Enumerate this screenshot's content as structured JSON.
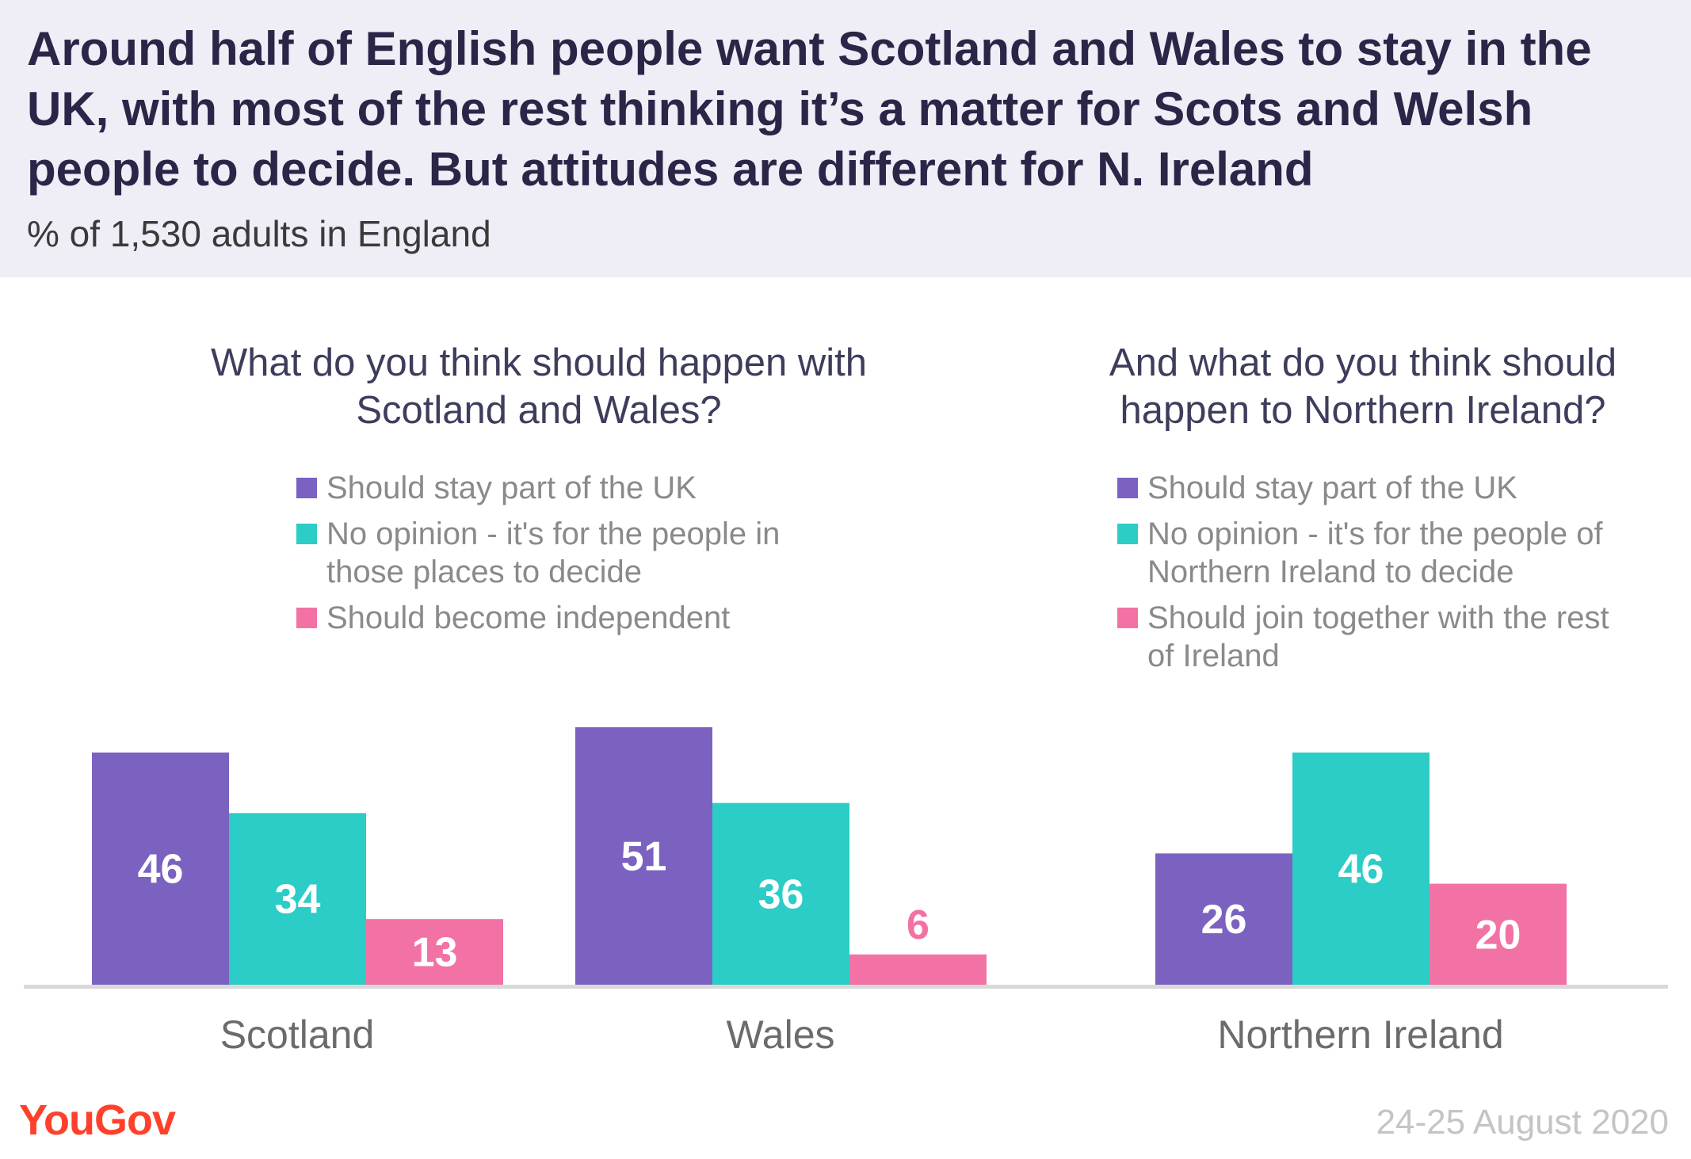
{
  "title": "Around half of English people want Scotland and Wales to stay in the UK, with most of the rest thinking it’s a matter for Scots and Welsh people to decide. But attitudes are different for N. Ireland",
  "subtitle": "% of 1,530 adults in England",
  "left_panel": {
    "question": "What do you think should happen with Scotland and Wales?",
    "legend": [
      {
        "label": "Should stay part of the UK",
        "color": "#7b62c1"
      },
      {
        "label": "No opinion - it's for the people in those places to decide",
        "color": "#2bcdc6"
      },
      {
        "label": "Should become independent",
        "color": "#f272a5"
      }
    ]
  },
  "right_panel": {
    "question": "And what do you think should happen to Northern Ireland?",
    "legend": [
      {
        "label": "Should stay part of the UK",
        "color": "#7b62c1"
      },
      {
        "label": "No opinion - it's for the people of Northern Ireland to decide",
        "color": "#2bcdc6"
      },
      {
        "label": "Should join together with the rest of Ireland",
        "color": "#f272a5"
      }
    ]
  },
  "chart_data": {
    "type": "bar",
    "categories": [
      "Scotland",
      "Wales",
      "Northern Ireland"
    ],
    "series": [
      {
        "name": "Should stay part of the UK",
        "values": [
          46,
          51,
          26
        ],
        "color": "#7b62c1"
      },
      {
        "name": "No opinion",
        "values": [
          34,
          36,
          46
        ],
        "color": "#2bcdc6"
      },
      {
        "name": "Should become independent / join together with the rest of Ireland",
        "values": [
          13,
          6,
          20
        ],
        "color": "#f272a5"
      }
    ],
    "ylim": [
      0,
      51
    ],
    "grid": false,
    "data_labels": true
  },
  "footer": {
    "brand": "YouGov",
    "brand_color": "#ff412c",
    "date": "24-25 August 2020"
  }
}
